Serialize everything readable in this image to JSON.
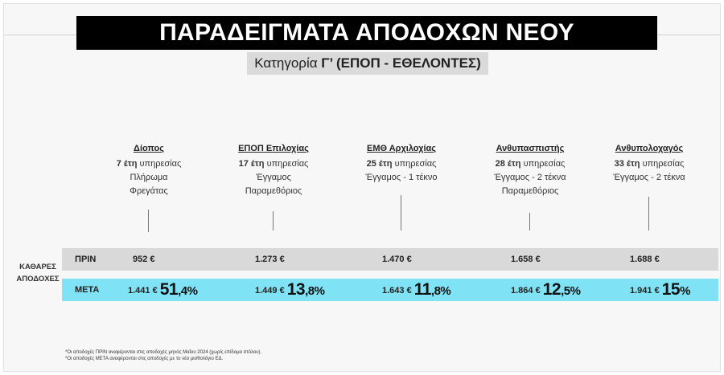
{
  "title": "ΠΑΡΑΔΕΙΓΜΑΤΑ ΑΠΟΔΟΧΩΝ ΝΕΟΥ ΜΙΣΘΟΛΟΓΙΟΥ",
  "subtitle_prefix": "Κατηγορία ",
  "subtitle_bold": "Γ’ (ΕΠΟΠ - ΕΘΕΛΟΝΤΕΣ)",
  "net_label": "ΚΑΘΑΡΕΣ ΑΠΟΔΟΧΕΣ",
  "row_prin": "ΠΡΙΝ",
  "row_meta": "ΜΕΤΑ",
  "columns": [
    {
      "name": "Δίοπος",
      "years_num": "7 έτη",
      "years_rest": " υπηρεσίας",
      "line1": "Πλήρωμα",
      "line2": "Φρεγάτας",
      "line3": "",
      "prin": "952 €",
      "meta": "1.441 €",
      "pct_int": "51",
      "pct_dec": ",4%"
    },
    {
      "name": "ΕΠΟΠ Επιλοχίας",
      "years_num": "17 έτη",
      "years_rest": " υπηρεσίας",
      "line1": "Έγγαμος",
      "line2": "Παραμεθόριος",
      "line3": "",
      "prin": "1.273 €",
      "meta": "1.449 €",
      "pct_int": "13",
      "pct_dec": ",8%"
    },
    {
      "name": "ΕΜΘ Αρχιλοχίας",
      "years_num": "25 έτη",
      "years_rest": " υπηρεσίας",
      "line1": "Έγγαμος - 1 τέκνο",
      "line2": "",
      "line3": "",
      "prin": "1.470 €",
      "meta": "1.643 €",
      "pct_int": "11",
      "pct_dec": ",8%"
    },
    {
      "name": "Ανθυπασπιστής",
      "years_num": "28 έτη",
      "years_rest": " υπηρεσίας",
      "line1": "Έγγαμος - 2 τέκνα",
      "line2": "Παραμεθόριος",
      "line3": "",
      "prin": "1.658 €",
      "meta": "1.864 €",
      "pct_int": "12",
      "pct_dec": ",5%"
    },
    {
      "name": "Ανθυπολοχαγός",
      "years_num": "33 έτη",
      "years_rest": " υπηρεσίας",
      "line1": "Έγγαμος - 2 τέκνα",
      "line2": "",
      "line3": "",
      "prin": "1.688 €",
      "meta": "1.941 €",
      "pct_int": "15",
      "pct_dec": "%"
    }
  ],
  "footnotes": [
    "*Οι αποδοχές ΠΡΙΝ αναφέρονται στις αποδοχές μηνός Μαΐου 2024 (χωρίς επίδομα στόλου).",
    "*Οι αποδοχές ΜΕΤΑ αναφέρονται στις αποδοχές με το νέο μισθολόγιο ΕΔ."
  ]
}
